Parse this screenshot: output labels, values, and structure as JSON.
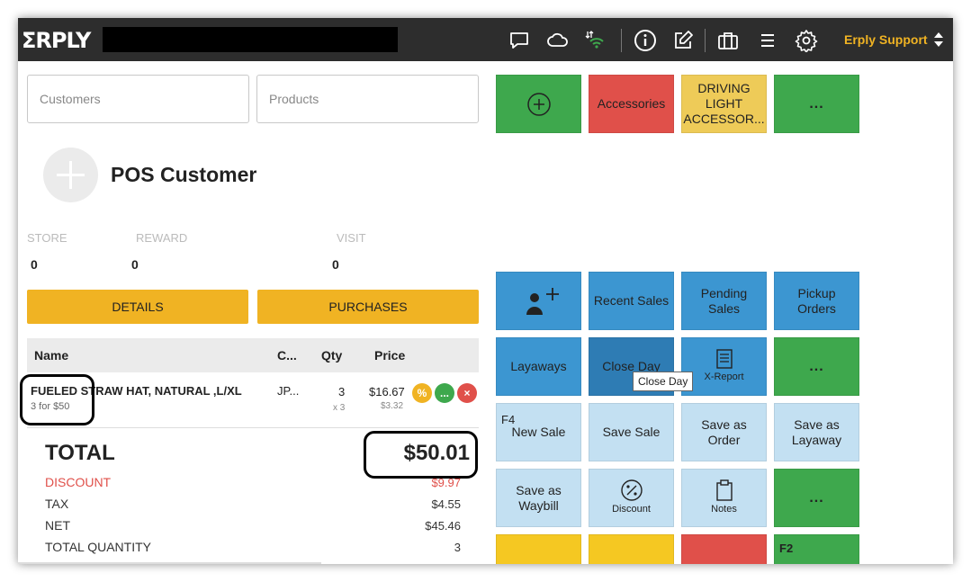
{
  "app": {
    "logo": "ΣRPLY",
    "support_label": "Erply Support"
  },
  "topbar_icons": [
    "chat-icon",
    "cloud-icon",
    "wifi-signal-icon",
    "info-icon",
    "edit-icon",
    "briefcase-icon",
    "menu-icon",
    "gear-icon"
  ],
  "search": {
    "customers_placeholder": "Customers",
    "products_placeholder": "Products"
  },
  "customer": {
    "name": "POS Customer",
    "store_label": "STORE",
    "reward_label": "REWARD",
    "visit_label": "VISIT",
    "store_value": "0",
    "reward_value": "0",
    "visit_value": "0",
    "details_label": "DETAILS",
    "purchases_label": "PURCHASES"
  },
  "table": {
    "headers": {
      "name": "Name",
      "code": "C...",
      "qty": "Qty",
      "price": "Price"
    },
    "rows": [
      {
        "name": "FUELED STRAW HAT, NATURAL ,L/XL",
        "promo": "3 for $50",
        "code": "JP...",
        "qty": "3",
        "qty_sub": "x 3",
        "price": "$16.67",
        "price_sub": "$3.32",
        "actions": [
          "%",
          "...",
          "×"
        ]
      }
    ]
  },
  "totals": {
    "total_label": "TOTAL",
    "total_value": "$50.01",
    "discount_label": "DISCOUNT",
    "discount_value": "$9.97",
    "tax_label": "TAX",
    "tax_value": "$4.55",
    "net_label": "NET",
    "net_value": "$45.46",
    "qty_label": "TOTAL QUANTITY",
    "qty_value": "3"
  },
  "tiles": {
    "accessories": "Accessories",
    "driving_light": "DRIVING LIGHT ACCESSOR...",
    "more": "...",
    "recent_sales": "Recent Sales",
    "pending_sales": "Pending Sales",
    "pickup_orders": "Pickup Orders",
    "layaways": "Layaways",
    "close_day": "Close Day",
    "x_report": "X-Report",
    "new_sale_key": "F4",
    "new_sale": "New Sale",
    "save_sale": "Save Sale",
    "save_as_order": "Save as Order",
    "save_as_layaway": "Save as Layaway",
    "save_as_waybill": "Save as Waybill",
    "discount": "Discount",
    "notes": "Notes",
    "f2_key": "F2"
  },
  "tooltip": "Close Day",
  "colors": {
    "topbar": "#2d2d2d",
    "accent_yellow": "#f0b323",
    "green": "#3ea84d",
    "red": "#e0504a",
    "blue": "#3c96d1",
    "pale_blue": "#c3e0f2"
  }
}
